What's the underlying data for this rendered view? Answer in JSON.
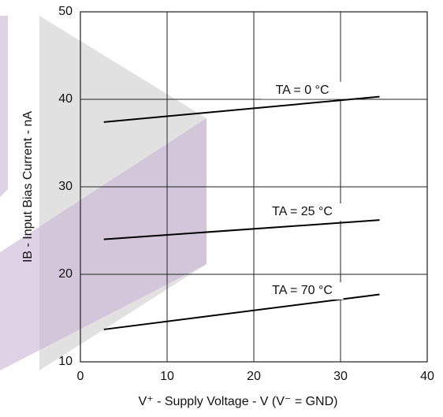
{
  "chart_data": {
    "type": "line",
    "x_label": "V⁺ - Supply Voltage - V (V⁻ = GND)",
    "y_label": "IB - Input Bias Current - nA",
    "x": [
      2.7,
      34.5
    ],
    "series": [
      {
        "name": "TA = 0 °C",
        "color": "#000000",
        "values": [
          37.4,
          40.3
        ]
      },
      {
        "name": "TA = 25 °C",
        "color": "#000000",
        "values": [
          24.0,
          26.2
        ]
      },
      {
        "name": "TA = 70 °C",
        "color": "#000000",
        "values": [
          13.7,
          17.7
        ]
      }
    ],
    "xlim": [
      0,
      40
    ],
    "xticks": [
      0,
      10,
      20,
      30,
      40
    ],
    "ylim": [
      10,
      50
    ],
    "yticks": [
      10,
      20,
      30,
      40,
      50
    ],
    "grid": true
  }
}
